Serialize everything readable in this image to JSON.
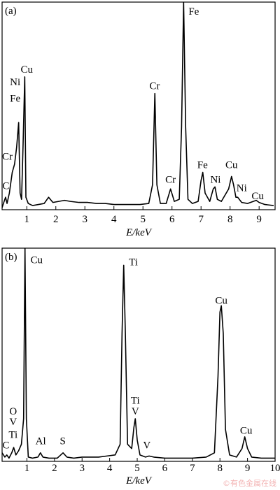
{
  "chart_data": [
    {
      "type": "line",
      "panel_label": "(a)",
      "xlabel": "E/keV",
      "color": "#000000",
      "xlim": [
        0.15,
        9.55
      ],
      "ylim": [
        0,
        100
      ],
      "xticks": [
        1,
        2,
        3,
        4,
        5,
        6,
        7,
        8,
        9
      ],
      "x": [
        0.15,
        0.22,
        0.27,
        0.32,
        0.4,
        0.5,
        0.58,
        0.65,
        0.72,
        0.77,
        0.82,
        0.87,
        0.93,
        0.97,
        1.05,
        1.2,
        1.4,
        1.6,
        1.75,
        1.9,
        2.1,
        2.3,
        2.5,
        2.8,
        3.1,
        3.4,
        3.7,
        4.0,
        4.3,
        4.6,
        4.9,
        5.2,
        5.33,
        5.41,
        5.48,
        5.6,
        5.8,
        5.95,
        6.08,
        6.25,
        6.33,
        6.4,
        6.47,
        6.55,
        6.7,
        6.9,
        7.0,
        7.06,
        7.14,
        7.3,
        7.42,
        7.48,
        7.56,
        7.7,
        7.95,
        8.05,
        8.12,
        8.2,
        8.26,
        8.4,
        8.6,
        8.8,
        8.9,
        9.0,
        9.2,
        9.5
      ],
      "values": [
        1,
        4,
        6,
        3,
        8,
        18,
        22,
        30,
        42,
        8,
        5,
        30,
        64,
        6,
        3,
        2,
        2.5,
        3,
        6,
        3.5,
        4,
        4.5,
        4,
        3.5,
        3.5,
        3,
        3,
        2.5,
        2.5,
        2.5,
        2.5,
        3,
        12,
        56,
        12,
        3,
        3,
        10,
        4,
        5,
        40,
        100,
        40,
        5,
        3,
        4,
        14,
        18,
        8,
        4,
        10,
        11,
        5,
        4,
        10,
        16,
        12,
        6,
        6,
        3.5,
        3,
        4,
        4.5,
        3.5,
        2.5,
        2
      ],
      "annotations": [
        {
          "text": "C",
          "x": 0.28,
          "y": 10
        },
        {
          "text": "Cr",
          "x": 0.33,
          "y": 24
        },
        {
          "text": "Fe",
          "x": 0.6,
          "y": 52
        },
        {
          "text": "Ni",
          "x": 0.6,
          "y": 60
        },
        {
          "text": "Cu",
          "x": 1.0,
          "y": 66
        },
        {
          "text": "Cr",
          "x": 5.4,
          "y": 58
        },
        {
          "text": "Fe",
          "x": 6.75,
          "y": 94
        },
        {
          "text": "Cr",
          "x": 5.95,
          "y": 13
        },
        {
          "text": "Fe",
          "x": 7.05,
          "y": 20
        },
        {
          "text": "Ni",
          "x": 7.5,
          "y": 13
        },
        {
          "text": "Cu",
          "x": 8.05,
          "y": 20
        },
        {
          "text": "Ni",
          "x": 8.4,
          "y": 9
        },
        {
          "text": "Cu",
          "x": 8.95,
          "y": 5
        }
      ]
    },
    {
      "type": "line",
      "panel_label": "(b)",
      "xlabel": "E/keV",
      "color": "#000000",
      "xlim": [
        0.1,
        10
      ],
      "ylim": [
        0,
        100
      ],
      "xticks": [
        1,
        2,
        3,
        4,
        5,
        6,
        7,
        8,
        9,
        10
      ],
      "x": [
        0.1,
        0.2,
        0.27,
        0.35,
        0.45,
        0.52,
        0.6,
        0.7,
        0.8,
        0.88,
        0.93,
        0.98,
        1.05,
        1.2,
        1.4,
        1.49,
        1.58,
        1.8,
        2.1,
        2.31,
        2.45,
        2.7,
        3.0,
        3.3,
        3.6,
        3.9,
        4.2,
        4.38,
        4.45,
        4.51,
        4.57,
        4.65,
        4.8,
        4.88,
        4.93,
        5.0,
        5.1,
        5.3,
        5.43,
        5.6,
        6.0,
        6.5,
        7.0,
        7.5,
        7.8,
        7.93,
        8.0,
        8.05,
        8.12,
        8.2,
        8.35,
        8.6,
        8.8,
        8.9,
        9.0,
        9.15,
        9.5,
        10.0
      ],
      "values": [
        4,
        2,
        3,
        1.5,
        4,
        6.5,
        3,
        5,
        8,
        20,
        100,
        20,
        2,
        1.5,
        2,
        4,
        2,
        1.5,
        1.5,
        4,
        2,
        1.5,
        2,
        2,
        2,
        2.5,
        3,
        8,
        60,
        92,
        60,
        8,
        6,
        16,
        20,
        10,
        3,
        2,
        2.5,
        2,
        1.5,
        1.5,
        1.5,
        2,
        4,
        40,
        70,
        73,
        60,
        15,
        3,
        2,
        6,
        11.5,
        6,
        2,
        1.5,
        1.5
      ],
      "annotations": [
        {
          "text": "C",
          "x": 0.24,
          "y": 6
        },
        {
          "text": "Ti",
          "x": 0.5,
          "y": 11
        },
        {
          "text": "V",
          "x": 0.5,
          "y": 17
        },
        {
          "text": "O",
          "x": 0.5,
          "y": 22
        },
        {
          "text": "Al",
          "x": 1.5,
          "y": 8
        },
        {
          "text": "S",
          "x": 2.3,
          "y": 8
        },
        {
          "text": "Cu",
          "x": 1.35,
          "y": 93
        },
        {
          "text": "Ti",
          "x": 4.86,
          "y": 92
        },
        {
          "text": "Ti",
          "x": 4.93,
          "y": 27
        },
        {
          "text": "V",
          "x": 4.93,
          "y": 22
        },
        {
          "text": "V",
          "x": 5.35,
          "y": 6
        },
        {
          "text": "Cu",
          "x": 8.05,
          "y": 74
        },
        {
          "text": "Cu",
          "x": 8.95,
          "y": 13
        }
      ]
    }
  ],
  "watermark": "©有色金属在线"
}
